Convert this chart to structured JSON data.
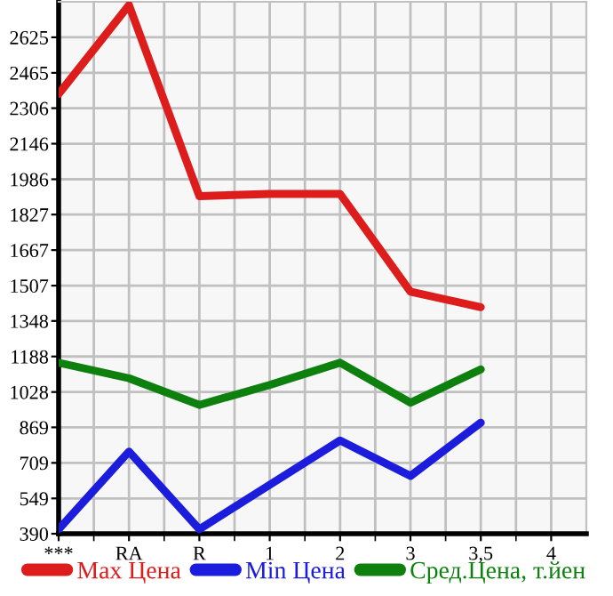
{
  "chart_data": {
    "type": "line",
    "categories": [
      "***",
      "RA",
      "R",
      "1",
      "2",
      "3",
      "3,5",
      "4"
    ],
    "series": [
      {
        "name": "Max Цена",
        "color": "#dd1c1c",
        "values": [
          2370,
          2770,
          1910,
          1920,
          1920,
          1480,
          1410,
          null
        ]
      },
      {
        "name": "Min Цена",
        "color": "#1c1cdd",
        "values": [
          410,
          760,
          410,
          610,
          810,
          650,
          890,
          null
        ]
      },
      {
        "name": "Сред.Цена, т.йен",
        "color": "#0d800d",
        "values": [
          1160,
          1090,
          970,
          1060,
          1160,
          980,
          1130,
          null
        ]
      }
    ],
    "ylim": [
      390,
      2785
    ],
    "yticks": [
      390,
      549,
      709,
      869,
      1028,
      1188,
      1348,
      1507,
      1667,
      1827,
      1986,
      2146,
      2306,
      2465,
      2625
    ],
    "grid": true,
    "legend": "bottom",
    "marker": "none",
    "line_style": "solid"
  }
}
